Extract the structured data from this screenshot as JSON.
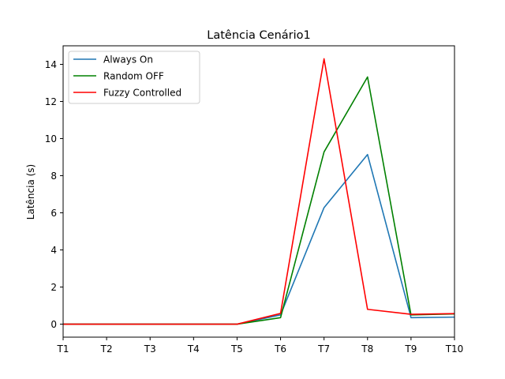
{
  "chart_data": {
    "type": "line",
    "title": "Latência Cenário1",
    "xlabel": "",
    "ylabel": "Latência (s)",
    "categories": [
      "T1",
      "T2",
      "T3",
      "T4",
      "T5",
      "T6",
      "T7",
      "T8",
      "T9",
      "T10"
    ],
    "ylim": [
      -0.7,
      15.0
    ],
    "yticks": [
      0,
      2,
      4,
      6,
      8,
      10,
      12,
      14
    ],
    "grid": false,
    "legend_position": "upper-left",
    "series": [
      {
        "name": "Always On",
        "color": "#1f77b4",
        "values": [
          0.0,
          0.0,
          0.0,
          0.0,
          0.0,
          0.5,
          6.28,
          9.14,
          0.35,
          0.38
        ]
      },
      {
        "name": "Random OFF",
        "color": "#008000",
        "values": [
          0.0,
          0.0,
          0.0,
          0.0,
          0.0,
          0.35,
          9.28,
          13.32,
          0.5,
          0.55
        ]
      },
      {
        "name": "Fuzzy Controlled",
        "color": "#ff0000",
        "values": [
          0.0,
          0.0,
          0.0,
          0.0,
          0.0,
          0.58,
          14.3,
          0.8,
          0.53,
          0.57
        ]
      }
    ]
  }
}
